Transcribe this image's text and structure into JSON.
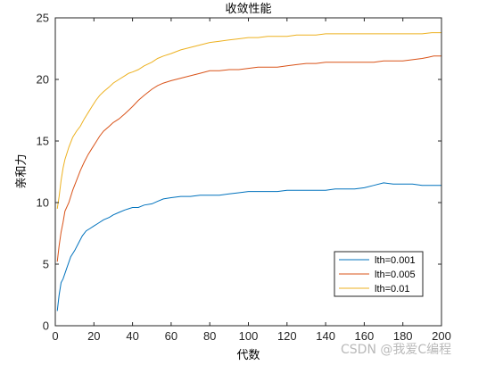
{
  "chart_data": {
    "type": "line",
    "title": "收敛性能",
    "xlabel": "代数",
    "ylabel": "亲和力",
    "xlim": [
      0,
      200
    ],
    "ylim": [
      0,
      25
    ],
    "xticks": [
      0,
      20,
      40,
      60,
      80,
      100,
      120,
      140,
      160,
      180,
      200
    ],
    "yticks": [
      0,
      5,
      10,
      15,
      20,
      25
    ],
    "grid": false,
    "legend_position": "lower-right",
    "series": [
      {
        "name": "lth=0.001",
        "color": "#0072BD",
        "points": [
          [
            1,
            1.2
          ],
          [
            2,
            2.5
          ],
          [
            3,
            3.5
          ],
          [
            4,
            3.8
          ],
          [
            6,
            4.7
          ],
          [
            8,
            5.6
          ],
          [
            10,
            6.1
          ],
          [
            12,
            6.7
          ],
          [
            14,
            7.3
          ],
          [
            16,
            7.7
          ],
          [
            18,
            7.9
          ],
          [
            20,
            8.1
          ],
          [
            22,
            8.3
          ],
          [
            25,
            8.6
          ],
          [
            28,
            8.8
          ],
          [
            30,
            9.0
          ],
          [
            33,
            9.2
          ],
          [
            36,
            9.4
          ],
          [
            38,
            9.5
          ],
          [
            40,
            9.6
          ],
          [
            43,
            9.6
          ],
          [
            46,
            9.8
          ],
          [
            50,
            9.9
          ],
          [
            53,
            10.1
          ],
          [
            56,
            10.3
          ],
          [
            60,
            10.4
          ],
          [
            65,
            10.5
          ],
          [
            70,
            10.5
          ],
          [
            75,
            10.6
          ],
          [
            80,
            10.6
          ],
          [
            85,
            10.6
          ],
          [
            90,
            10.7
          ],
          [
            95,
            10.8
          ],
          [
            100,
            10.9
          ],
          [
            105,
            10.9
          ],
          [
            110,
            10.9
          ],
          [
            115,
            10.9
          ],
          [
            120,
            11.0
          ],
          [
            125,
            11.0
          ],
          [
            130,
            11.0
          ],
          [
            135,
            11.0
          ],
          [
            140,
            11.0
          ],
          [
            145,
            11.1
          ],
          [
            150,
            11.1
          ],
          [
            155,
            11.1
          ],
          [
            160,
            11.2
          ],
          [
            165,
            11.4
          ],
          [
            170,
            11.6
          ],
          [
            175,
            11.5
          ],
          [
            180,
            11.5
          ],
          [
            185,
            11.5
          ],
          [
            190,
            11.4
          ],
          [
            195,
            11.4
          ],
          [
            200,
            11.4
          ]
        ]
      },
      {
        "name": "lth=0.005",
        "color": "#D95319",
        "points": [
          [
            1,
            5.2
          ],
          [
            2,
            6.5
          ],
          [
            3,
            7.6
          ],
          [
            4,
            8.4
          ],
          [
            5,
            9.3
          ],
          [
            7,
            10.0
          ],
          [
            9,
            11.0
          ],
          [
            11,
            11.8
          ],
          [
            13,
            12.6
          ],
          [
            15,
            13.3
          ],
          [
            17,
            13.9
          ],
          [
            19,
            14.4
          ],
          [
            21,
            14.9
          ],
          [
            23,
            15.4
          ],
          [
            25,
            15.8
          ],
          [
            28,
            16.2
          ],
          [
            30,
            16.5
          ],
          [
            33,
            16.8
          ],
          [
            36,
            17.2
          ],
          [
            38,
            17.5
          ],
          [
            40,
            17.8
          ],
          [
            43,
            18.3
          ],
          [
            46,
            18.7
          ],
          [
            50,
            19.2
          ],
          [
            53,
            19.5
          ],
          [
            56,
            19.7
          ],
          [
            60,
            19.9
          ],
          [
            65,
            20.1
          ],
          [
            70,
            20.3
          ],
          [
            75,
            20.5
          ],
          [
            80,
            20.7
          ],
          [
            85,
            20.7
          ],
          [
            90,
            20.8
          ],
          [
            95,
            20.8
          ],
          [
            100,
            20.9
          ],
          [
            105,
            21.0
          ],
          [
            110,
            21.0
          ],
          [
            115,
            21.0
          ],
          [
            120,
            21.1
          ],
          [
            125,
            21.2
          ],
          [
            130,
            21.3
          ],
          [
            135,
            21.3
          ],
          [
            140,
            21.4
          ],
          [
            145,
            21.4
          ],
          [
            150,
            21.4
          ],
          [
            155,
            21.4
          ],
          [
            160,
            21.4
          ],
          [
            165,
            21.4
          ],
          [
            170,
            21.5
          ],
          [
            175,
            21.5
          ],
          [
            180,
            21.5
          ],
          [
            185,
            21.6
          ],
          [
            190,
            21.7
          ],
          [
            193,
            21.8
          ],
          [
            196,
            21.9
          ],
          [
            200,
            21.9
          ]
        ]
      },
      {
        "name": "lth=0.01",
        "color": "#EDB120",
        "points": [
          [
            1,
            9.5
          ],
          [
            2,
            10.5
          ],
          [
            3,
            11.8
          ],
          [
            4,
            12.8
          ],
          [
            5,
            13.5
          ],
          [
            7,
            14.5
          ],
          [
            9,
            15.3
          ],
          [
            11,
            15.8
          ],
          [
            13,
            16.2
          ],
          [
            15,
            16.8
          ],
          [
            17,
            17.3
          ],
          [
            19,
            17.8
          ],
          [
            21,
            18.3
          ],
          [
            23,
            18.7
          ],
          [
            25,
            19.0
          ],
          [
            28,
            19.4
          ],
          [
            30,
            19.7
          ],
          [
            33,
            20.0
          ],
          [
            36,
            20.3
          ],
          [
            38,
            20.5
          ],
          [
            40,
            20.6
          ],
          [
            43,
            20.8
          ],
          [
            46,
            21.1
          ],
          [
            50,
            21.4
          ],
          [
            53,
            21.7
          ],
          [
            56,
            21.9
          ],
          [
            60,
            22.1
          ],
          [
            65,
            22.4
          ],
          [
            70,
            22.6
          ],
          [
            75,
            22.8
          ],
          [
            80,
            23.0
          ],
          [
            85,
            23.1
          ],
          [
            90,
            23.2
          ],
          [
            95,
            23.3
          ],
          [
            100,
            23.4
          ],
          [
            105,
            23.4
          ],
          [
            110,
            23.5
          ],
          [
            115,
            23.5
          ],
          [
            120,
            23.5
          ],
          [
            125,
            23.6
          ],
          [
            130,
            23.6
          ],
          [
            135,
            23.6
          ],
          [
            140,
            23.7
          ],
          [
            145,
            23.7
          ],
          [
            150,
            23.7
          ],
          [
            155,
            23.7
          ],
          [
            160,
            23.7
          ],
          [
            165,
            23.7
          ],
          [
            170,
            23.7
          ],
          [
            175,
            23.7
          ],
          [
            180,
            23.7
          ],
          [
            185,
            23.7
          ],
          [
            190,
            23.7
          ],
          [
            195,
            23.8
          ],
          [
            200,
            23.8
          ]
        ]
      }
    ]
  },
  "watermark": "CSDN @我爱C编程"
}
